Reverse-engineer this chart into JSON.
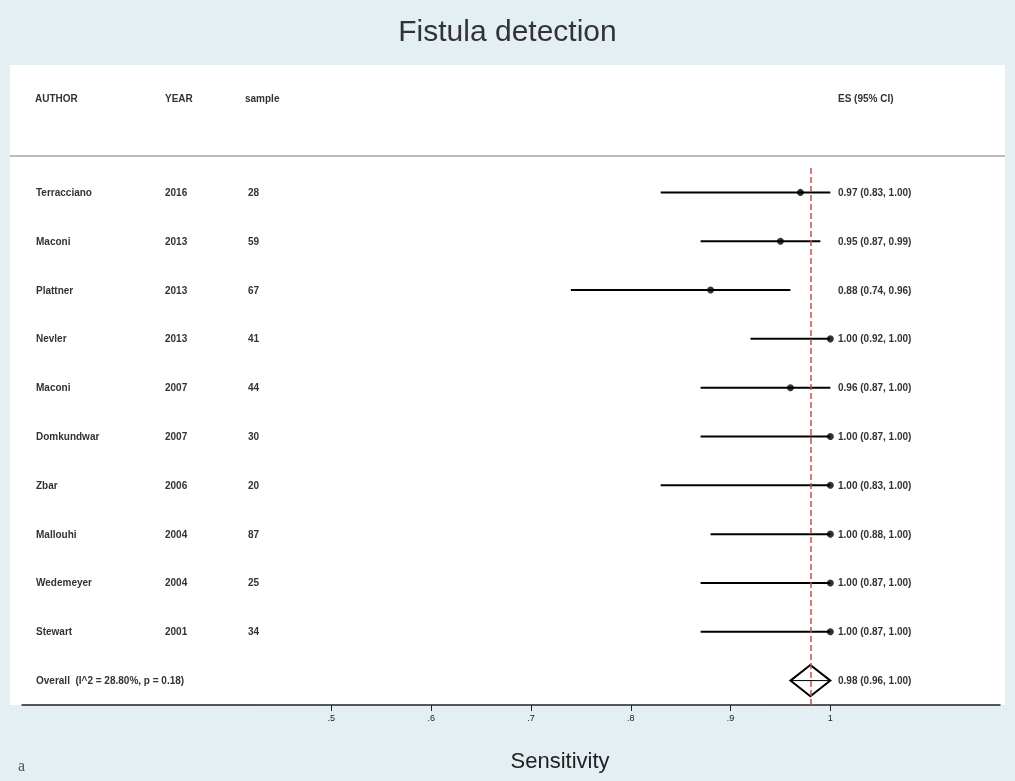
{
  "chart_data": {
    "type": "scatter",
    "orientation": "horizontal",
    "title": "Fistula detection",
    "xlabel": "Sensitivity",
    "categories": [
      "Terracciano",
      "Maconi",
      "Plattner",
      "Nevler",
      "Maconi",
      "Domkundwar",
      "Zbar",
      "Mallouhi",
      "Wedemeyer",
      "Stewart",
      "Overall  (I^2 = 28.80%, p = 0.18)"
    ],
    "series": [
      {
        "color": "#000000",
        "marker": "circle",
        "values": [
          0.97,
          0.95,
          0.88,
          1.0,
          0.96,
          1.0,
          1.0,
          1.0,
          1.0,
          1.0,
          null
        ],
        "errors": [
          [
            0.83,
            1.0
          ],
          [
            0.87,
            0.99
          ],
          [
            0.74,
            0.96
          ],
          [
            0.92,
            1.0
          ],
          [
            0.87,
            1.0
          ],
          [
            0.87,
            1.0
          ],
          [
            0.83,
            1.0
          ],
          [
            0.88,
            1.0
          ],
          [
            0.87,
            1.0
          ],
          [
            0.87,
            1.0
          ],
          null
        ]
      },
      {
        "color": "#000000",
        "marker": "diamond",
        "values": [
          null,
          null,
          null,
          null,
          null,
          null,
          null,
          null,
          null,
          null,
          0.98
        ],
        "errors": [
          null,
          null,
          null,
          null,
          null,
          null,
          null,
          null,
          null,
          null,
          [
            0.96,
            1.0
          ]
        ]
      }
    ],
    "xlim": [
      0.19,
      1.17
    ],
    "xticks": [
      {
        "value": 0.5,
        "label": ".5"
      },
      {
        "value": 0.6,
        "label": ".6"
      },
      {
        "value": 0.7,
        "label": ".7"
      },
      {
        "value": 0.8,
        "label": ".8"
      },
      {
        "value": 0.9,
        "label": ".9"
      },
      1
    ],
    "grid": false,
    "ref_lines": [
      {
        "axis": "x",
        "value": 0.98,
        "color": "#c0504d",
        "line_style": "dashed"
      }
    ],
    "annotations": [
      "AUTHOR",
      "YEAR",
      "sample",
      "ES (95% CI)",
      "2016",
      "28",
      "0.97 (0.83, 1.00)",
      "2013",
      "59",
      "0.95 (0.87, 0.99)",
      "2013",
      "67",
      "0.88 (0.74, 0.96)",
      "2013",
      "41",
      "1.00 (0.92, 1.00)",
      "2007",
      "44",
      "0.96 (0.87, 1.00)",
      "2007",
      "30",
      "1.00 (0.87, 1.00)",
      "2006",
      "20",
      "1.00 (0.83, 1.00)",
      "2004",
      "87",
      "1.00 (0.88, 1.00)",
      "2004",
      "25",
      "1.00 (0.87, 1.00)",
      "2001",
      "34",
      "1.00 (0.87, 1.00)",
      "0.98 (0.96, 1.00)",
      "a"
    ]
  }
}
